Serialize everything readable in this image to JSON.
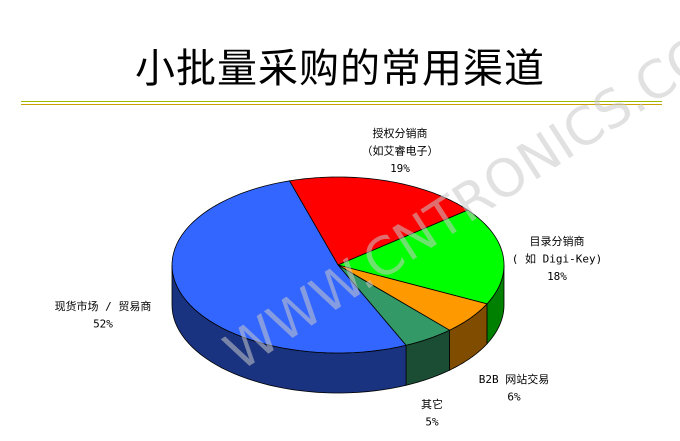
{
  "chart_data": {
    "type": "pie",
    "style": "3d",
    "title": "小批量采购的常用渠道",
    "watermark": "WWW.CNTRONICS.COM",
    "slices": [
      {
        "label_lines": [
          "授权分销商",
          "（如艾睿电子）"
        ],
        "value": 19,
        "value_label": "19%",
        "color": "#FF0000",
        "side_color": "#800000"
      },
      {
        "label_lines": [
          "目录分销商",
          "( 如 Digi-Key)"
        ],
        "value": 18,
        "value_label": "18%",
        "color": "#00FF00",
        "side_color": "#008000"
      },
      {
        "label_lines": [
          "B2B 网站交易"
        ],
        "value": 6,
        "value_label": "6%",
        "color": "#FF9900",
        "side_color": "#804C00"
      },
      {
        "label_lines": [
          "其它"
        ],
        "value": 5,
        "value_label": "5%",
        "color": "#339966",
        "side_color": "#1A4D33"
      },
      {
        "label_lines": [
          "现货市场 / 贸易商"
        ],
        "value": 52,
        "value_label": "52%",
        "color": "#3366FF",
        "side_color": "#1A3380"
      }
    ],
    "rule_colors": [
      "#9BBB00",
      "#C8A000"
    ]
  }
}
